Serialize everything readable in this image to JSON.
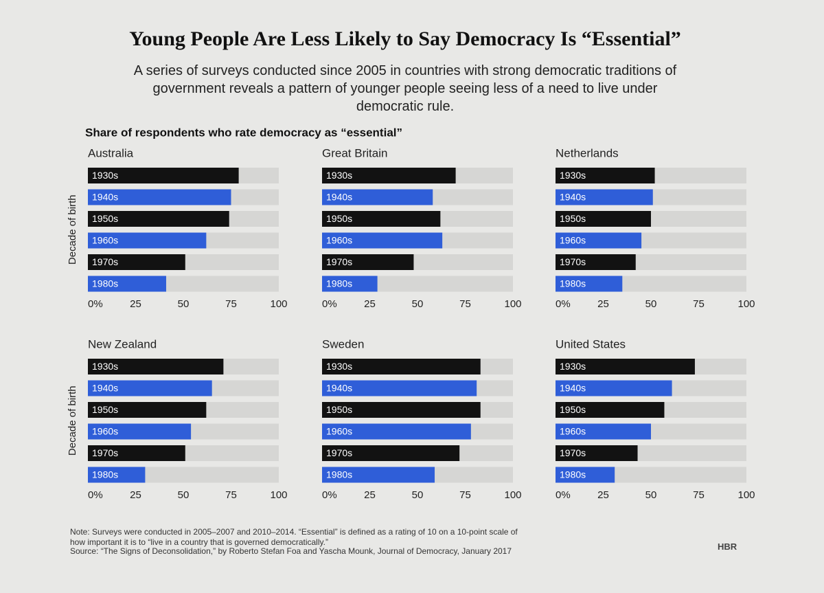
{
  "title": "Young People Are Less Likely to Say Democracy Is “Essential”",
  "subtitle": "A series of surveys conducted since 2005 in countries with strong democratic traditions of government reveals a pattern of younger people seeing less of a need to live under democratic rule.",
  "chart_label": "Share of respondents who rate democracy as “essential”",
  "note": "Note: Surveys were conducted in 2005–2007 and 2010–2014. “Essential” is defined as a rating of 10 on a 10-point scale of how important it is to “live in a country that is governed democratically.”",
  "source": "Source: “The Signs of Deconsolidation,” by Roberto Stefan Foa and Yascha Mounk, Journal of Democracy, January 2017",
  "logo": "HBR",
  "chart_data": [
    {
      "type": "bar",
      "orientation": "horizontal",
      "title": "Australia",
      "ylabel": "Decade of birth",
      "categories": [
        "1930s",
        "1940s",
        "1950s",
        "1960s",
        "1970s",
        "1980s"
      ],
      "values": [
        79,
        75,
        74,
        62,
        51,
        41
      ],
      "colors": [
        "#121212",
        "#2f5ed8",
        "#121212",
        "#2f5ed8",
        "#121212",
        "#2f5ed8"
      ],
      "xlim": [
        0,
        100
      ],
      "xticks": [
        {
          "value": 0,
          "label": "0%"
        },
        25,
        50,
        75,
        100
      ]
    },
    {
      "type": "bar",
      "orientation": "horizontal",
      "title": "Great Britain",
      "categories": [
        "1930s",
        "1940s",
        "1950s",
        "1960s",
        "1970s",
        "1980s"
      ],
      "values": [
        70,
        58,
        62,
        63,
        48,
        29
      ],
      "colors": [
        "#121212",
        "#2f5ed8",
        "#121212",
        "#2f5ed8",
        "#121212",
        "#2f5ed8"
      ],
      "xlim": [
        0,
        100
      ],
      "xticks": [
        {
          "value": 0,
          "label": "0%"
        },
        25,
        50,
        75,
        100
      ]
    },
    {
      "type": "bar",
      "orientation": "horizontal",
      "title": "Netherlands",
      "categories": [
        "1930s",
        "1940s",
        "1950s",
        "1960s",
        "1970s",
        "1980s"
      ],
      "values": [
        52,
        51,
        50,
        45,
        42,
        35
      ],
      "colors": [
        "#121212",
        "#2f5ed8",
        "#121212",
        "#2f5ed8",
        "#121212",
        "#2f5ed8"
      ],
      "xlim": [
        0,
        100
      ],
      "xticks": [
        {
          "value": 0,
          "label": "0%"
        },
        25,
        50,
        75,
        100
      ]
    },
    {
      "type": "bar",
      "orientation": "horizontal",
      "title": "New Zealand",
      "ylabel": "Decade of birth",
      "categories": [
        "1930s",
        "1940s",
        "1950s",
        "1960s",
        "1970s",
        "1980s"
      ],
      "values": [
        71,
        65,
        62,
        54,
        51,
        30
      ],
      "colors": [
        "#121212",
        "#2f5ed8",
        "#121212",
        "#2f5ed8",
        "#121212",
        "#2f5ed8"
      ],
      "xlim": [
        0,
        100
      ],
      "xticks": [
        {
          "value": 0,
          "label": "0%"
        },
        25,
        50,
        75,
        100
      ]
    },
    {
      "type": "bar",
      "orientation": "horizontal",
      "title": "Sweden",
      "categories": [
        "1930s",
        "1940s",
        "1950s",
        "1960s",
        "1970s",
        "1980s"
      ],
      "values": [
        83,
        81,
        83,
        78,
        72,
        59
      ],
      "colors": [
        "#121212",
        "#2f5ed8",
        "#121212",
        "#2f5ed8",
        "#121212",
        "#2f5ed8"
      ],
      "xlim": [
        0,
        100
      ],
      "xticks": [
        {
          "value": 0,
          "label": "0%"
        },
        25,
        50,
        75,
        100
      ]
    },
    {
      "type": "bar",
      "orientation": "horizontal",
      "title": "United States",
      "categories": [
        "1930s",
        "1940s",
        "1950s",
        "1960s",
        "1970s",
        "1980s"
      ],
      "values": [
        73,
        61,
        57,
        50,
        43,
        31
      ],
      "colors": [
        "#121212",
        "#2f5ed8",
        "#121212",
        "#2f5ed8",
        "#121212",
        "#2f5ed8"
      ],
      "xlim": [
        0,
        100
      ],
      "xticks": [
        {
          "value": 0,
          "label": "0%"
        },
        25,
        50,
        75,
        100
      ]
    }
  ]
}
